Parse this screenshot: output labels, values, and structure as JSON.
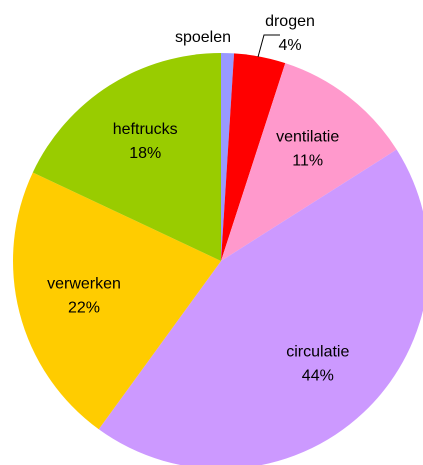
{
  "chart_data": {
    "type": "pie",
    "categories": [
      "spoelen",
      "drogen",
      "ventilatie",
      "circulatie",
      "verwerken",
      "heftrucks"
    ],
    "values": [
      1,
      4,
      11,
      44,
      22,
      18
    ],
    "value_labels": [
      "1%",
      "4%",
      "11%",
      "44%",
      "22%",
      "18%"
    ],
    "colors": [
      "#9999ff",
      "#ff0000",
      "#ff99cc",
      "#cc99ff",
      "#ffcc00",
      "#99cc00"
    ]
  }
}
